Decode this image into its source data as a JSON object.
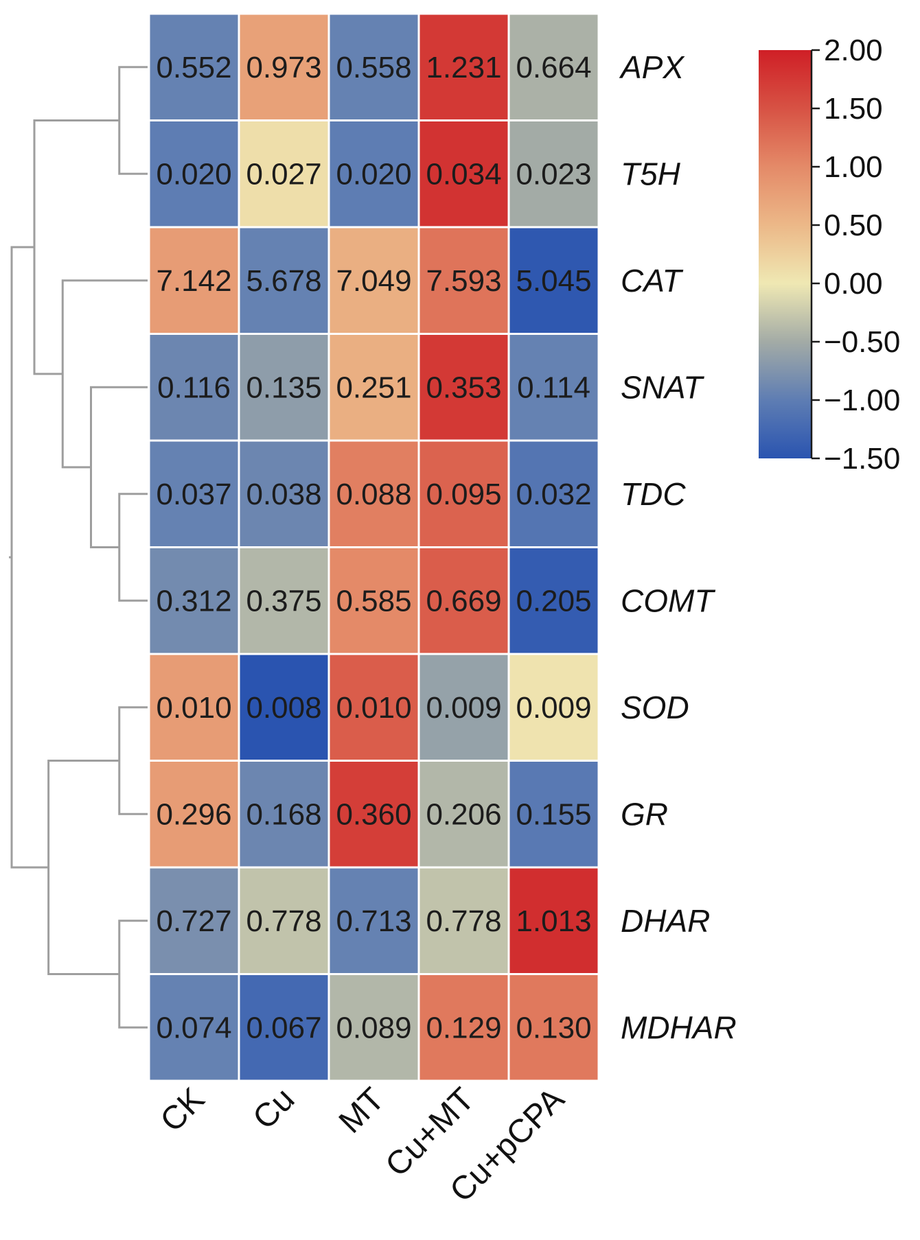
{
  "chart_data": {
    "type": "heatmap",
    "title": "",
    "xlabel": "",
    "ylabel": "",
    "columns": [
      "CK",
      "Cu",
      "MT",
      "Cu+MT",
      "Cu+pCPA"
    ],
    "rows": [
      "APX",
      "T5H",
      "CAT",
      "SNAT",
      "TDC",
      "COMT",
      "SOD",
      "GR",
      "DHAR",
      "MDHAR"
    ],
    "cell_labels": [
      [
        "0.552",
        "0.973",
        "0.558",
        "1.231",
        "0.664"
      ],
      [
        "0.020",
        "0.027",
        "0.020",
        "0.034",
        "0.023"
      ],
      [
        "7.142",
        "5.678",
        "7.049",
        "7.593",
        "5.045"
      ],
      [
        "0.116",
        "0.135",
        "0.251",
        "0.353",
        "0.114"
      ],
      [
        "0.037",
        "0.038",
        "0.088",
        "0.095",
        "0.032"
      ],
      [
        "0.312",
        "0.375",
        "0.585",
        "0.669",
        "0.205"
      ],
      [
        "0.010",
        "0.008",
        "0.010",
        "0.009",
        "0.009"
      ],
      [
        "0.296",
        "0.168",
        "0.360",
        "0.206",
        "0.155"
      ],
      [
        "0.727",
        "0.778",
        "0.713",
        "0.778",
        "1.013"
      ],
      [
        "0.074",
        "0.067",
        "0.089",
        "0.129",
        "0.130"
      ]
    ],
    "scaled_values": [
      [
        -0.95,
        0.75,
        -0.95,
        1.75,
        -0.45
      ],
      [
        -1.0,
        0.1,
        -1.0,
        1.8,
        -0.5
      ],
      [
        0.8,
        -0.95,
        0.6,
        1.2,
        -1.45
      ],
      [
        -0.9,
        -0.65,
        0.6,
        1.75,
        -0.95
      ],
      [
        -0.95,
        -0.9,
        1.1,
        1.35,
        -1.1
      ],
      [
        -0.85,
        -0.4,
        1.0,
        1.4,
        -1.4
      ],
      [
        0.8,
        -1.5,
        1.4,
        -0.6,
        0.05
      ],
      [
        0.8,
        -0.9,
        1.7,
        -0.4,
        -1.05
      ],
      [
        -0.8,
        -0.3,
        -0.95,
        -0.3,
        1.85
      ],
      [
        -0.95,
        -1.25,
        -0.4,
        1.15,
        1.15
      ]
    ],
    "color_scale": {
      "min": -1.5,
      "max": 2.0,
      "stops": [
        {
          "value": -1.5,
          "color": "#2a54b0"
        },
        {
          "value": -1.0,
          "color": "#5e7db3"
        },
        {
          "value": -0.5,
          "color": "#a3aba6"
        },
        {
          "value": 0.0,
          "color": "#efe8b3"
        },
        {
          "value": 0.5,
          "color": "#ecb888"
        },
        {
          "value": 1.0,
          "color": "#e48a68"
        },
        {
          "value": 1.5,
          "color": "#d75244"
        },
        {
          "value": 2.0,
          "color": "#cf1f26"
        }
      ],
      "ticks": [
        2.0,
        1.5,
        1.0,
        0.5,
        0.0,
        -0.5,
        -1.0,
        -1.5
      ],
      "tick_labels": [
        "2.00",
        "1.50",
        "1.00",
        "0.50",
        "0.00",
        "−0.50",
        "−1.00",
        "−1.50"
      ]
    },
    "row_dendrogram": {
      "merges": [
        {
          "id": "n_apx_t5h",
          "left": "APX",
          "right": "T5H",
          "height": 1.0
        },
        {
          "id": "n_tdc_comt",
          "left": "TDC",
          "right": "COMT",
          "height": 1.0
        },
        {
          "id": "n_snat_tdc_comt",
          "left": "SNAT",
          "right": "n_tdc_comt",
          "height": 2.0
        },
        {
          "id": "n_cat_group",
          "left": "CAT",
          "right": "n_snat_tdc_comt",
          "height": 3.0
        },
        {
          "id": "n_upper",
          "left": "n_apx_t5h",
          "right": "n_cat_group",
          "height": 4.0
        },
        {
          "id": "n_sod_gr",
          "left": "SOD",
          "right": "GR",
          "height": 1.0
        },
        {
          "id": "n_dhar_mdhar",
          "left": "DHAR",
          "right": "MDHAR",
          "height": 1.0
        },
        {
          "id": "n_lower",
          "left": "n_sod_gr",
          "right": "n_dhar_mdhar",
          "height": 3.5
        },
        {
          "id": "n_root",
          "left": "n_upper",
          "right": "n_lower",
          "height": 4.8
        }
      ]
    }
  }
}
